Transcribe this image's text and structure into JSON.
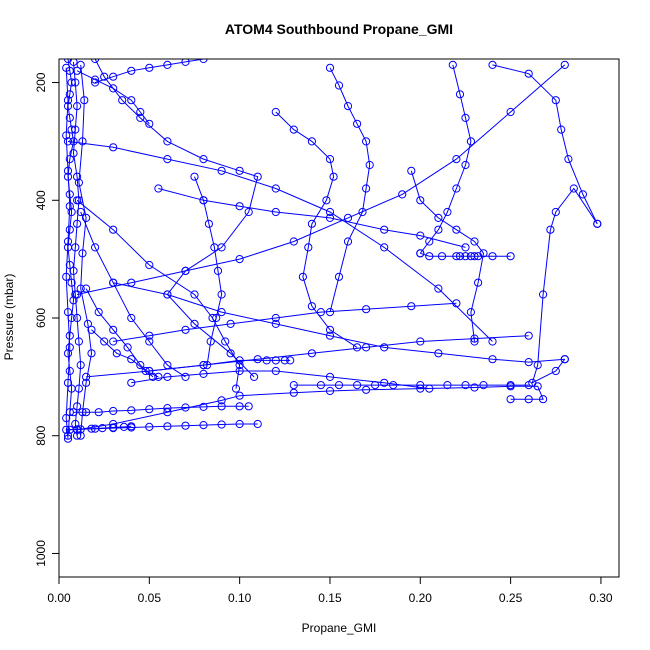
{
  "chart_data": {
    "type": "line",
    "title": "ATOM4 Southbound Propane_GMI",
    "xlabel": "Propane_GMI",
    "ylabel": "Pressure (mbar)",
    "xlim": [
      0.0,
      0.31
    ],
    "ylim": [
      1040,
      160
    ],
    "y_reversed": true,
    "xticks": [
      0.0,
      0.05,
      0.1,
      0.15,
      0.2,
      0.25,
      0.3
    ],
    "xtick_labels": [
      "0.00",
      "0.05",
      "0.10",
      "0.15",
      "0.20",
      "0.25",
      "0.30"
    ],
    "yticks": [
      200,
      400,
      600,
      800,
      1000
    ],
    "ytick_labels": [
      "200",
      "400",
      "600",
      "800",
      "1000"
    ],
    "grid": false,
    "color": "#0000ff",
    "markers": "open-circle",
    "series": [
      {
        "x": [
          0.005,
          0.006,
          0.007,
          0.006,
          0.005,
          0.006,
          0.007,
          0.008,
          0.006,
          0.005,
          0.006,
          0.007,
          0.006,
          0.005,
          0.006,
          0.007,
          0.008,
          0.007,
          0.006,
          0.005,
          0.006,
          0.007,
          0.006,
          0.005
        ],
        "y": [
          160,
          180,
          200,
          220,
          240,
          260,
          280,
          300,
          330,
          360,
          390,
          420,
          450,
          480,
          510,
          540,
          570,
          600,
          630,
          660,
          690,
          720,
          760,
          800
        ]
      },
      {
        "x": [
          0.008,
          0.009,
          0.01,
          0.009,
          0.008,
          0.01,
          0.011,
          0.01,
          0.009,
          0.008,
          0.009,
          0.01,
          0.011,
          0.012,
          0.011,
          0.01,
          0.009,
          0.01
        ],
        "y": [
          165,
          200,
          240,
          280,
          320,
          360,
          400,
          440,
          480,
          520,
          560,
          600,
          640,
          680,
          720,
          750,
          780,
          800
        ]
      },
      {
        "x": [
          0.004,
          0.005,
          0.004,
          0.005,
          0.006,
          0.005,
          0.004,
          0.005,
          0.006,
          0.005,
          0.004,
          0.005
        ],
        "y": [
          175,
          230,
          290,
          350,
          410,
          470,
          530,
          590,
          650,
          710,
          770,
          805
        ]
      },
      {
        "x": [
          0.012,
          0.014,
          0.013,
          0.011,
          0.015,
          0.013,
          0.012,
          0.016,
          0.018,
          0.015,
          0.013,
          0.012
        ],
        "y": [
          170,
          230,
          300,
          370,
          430,
          490,
          550,
          610,
          660,
          710,
          760,
          800
        ]
      },
      {
        "x": [
          0.02,
          0.025,
          0.035,
          0.045,
          0.06,
          0.08,
          0.1,
          0.11,
          0.105,
          0.09,
          0.07,
          0.06,
          0.075,
          0.095,
          0.108
        ],
        "y": [
          160,
          190,
          230,
          260,
          300,
          330,
          350,
          360,
          420,
          480,
          520,
          560,
          610,
          660,
          700
        ]
      },
      {
        "x": [
          0.01,
          0.03,
          0.05,
          0.075,
          0.085,
          0.092,
          0.1,
          0.098
        ],
        "y": [
          400,
          450,
          510,
          560,
          600,
          640,
          680,
          720
        ]
      },
      {
        "x": [
          0.004,
          0.01,
          0.02,
          0.03,
          0.04,
          0.05,
          0.06,
          0.07,
          0.08,
          0.09,
          0.1,
          0.11
        ],
        "y": [
          790,
          789,
          788,
          787,
          786,
          785,
          784,
          783,
          782,
          781,
          780,
          780
        ]
      },
      {
        "x": [
          0.006,
          0.012,
          0.018,
          0.024,
          0.03,
          0.036,
          0.04
        ],
        "y": [
          790,
          789,
          788,
          787,
          786,
          785,
          784
        ]
      },
      {
        "x": [
          0.008,
          0.015,
          0.022,
          0.03,
          0.04,
          0.05,
          0.06,
          0.07,
          0.08,
          0.09,
          0.1,
          0.105
        ],
        "y": [
          760,
          760,
          760,
          758,
          757,
          755,
          753,
          752,
          751,
          750,
          750,
          750
        ]
      },
      {
        "x": [
          0.01,
          0.03,
          0.06,
          0.09,
          0.1,
          0.13,
          0.15,
          0.17,
          0.2,
          0.23,
          0.25,
          0.265,
          0.268,
          0.26,
          0.25
        ],
        "y": [
          790,
          780,
          760,
          740,
          732,
          727,
          724,
          722,
          720,
          718,
          716,
          716,
          738,
          738,
          738
        ]
      },
      {
        "x": [
          0.13,
          0.145,
          0.155,
          0.165,
          0.175,
          0.185,
          0.2,
          0.215,
          0.225,
          0.235,
          0.25,
          0.26
        ],
        "y": [
          714,
          714,
          714,
          714,
          714,
          714,
          714,
          714,
          714,
          714,
          714,
          714
        ]
      },
      {
        "x": [
          0.015,
          0.05,
          0.08,
          0.1,
          0.115,
          0.12,
          0.125,
          0.128
        ],
        "y": [
          700,
          690,
          680,
          672,
          672,
          672,
          672,
          672
        ]
      },
      {
        "x": [
          0.03,
          0.06,
          0.09,
          0.12,
          0.15,
          0.18,
          0.21,
          0.24,
          0.26,
          0.28
        ],
        "y": [
          540,
          560,
          590,
          610,
          630,
          650,
          660,
          670,
          675,
          670
        ]
      },
      {
        "x": [
          0.28,
          0.275,
          0.262,
          0.265,
          0.268,
          0.272,
          0.275,
          0.285,
          0.298
        ],
        "y": [
          670,
          690,
          710,
          680,
          560,
          450,
          420,
          380,
          440
        ]
      },
      {
        "x": [
          0.24,
          0.26,
          0.275,
          0.278,
          0.282,
          0.29,
          0.298
        ],
        "y": [
          170,
          185,
          230,
          280,
          330,
          390,
          440
        ]
      },
      {
        "x": [
          0.195,
          0.2,
          0.21,
          0.22,
          0.23,
          0.235,
          0.232,
          0.228,
          0.23
        ],
        "y": [
          350,
          400,
          430,
          450,
          470,
          490,
          540,
          590,
          640
        ]
      },
      {
        "x": [
          0.2,
          0.205,
          0.212,
          0.22,
          0.222,
          0.225,
          0.228,
          0.23,
          0.232,
          0.24,
          0.25
        ],
        "y": [
          490,
          495,
          495,
          495,
          495,
          495,
          495,
          495,
          495,
          495,
          495
        ]
      },
      {
        "x": [
          0.218,
          0.222,
          0.225,
          0.228,
          0.225,
          0.22,
          0.215,
          0.21,
          0.205,
          0.2
        ],
        "y": [
          170,
          220,
          260,
          300,
          340,
          380,
          420,
          450,
          470,
          490
        ]
      },
      {
        "x": [
          0.15,
          0.155,
          0.16,
          0.165,
          0.17,
          0.172,
          0.17,
          0.168,
          0.16,
          0.155,
          0.15
        ],
        "y": [
          175,
          205,
          240,
          270,
          300,
          340,
          380,
          420,
          470,
          530,
          590
        ]
      },
      {
        "x": [
          0.12,
          0.13,
          0.14,
          0.15,
          0.152,
          0.148,
          0.14,
          0.138,
          0.135,
          0.14,
          0.15,
          0.165
        ],
        "y": [
          250,
          280,
          300,
          330,
          360,
          400,
          440,
          480,
          530,
          580,
          620,
          650
        ]
      },
      {
        "x": [
          0.055,
          0.08,
          0.1,
          0.12,
          0.15,
          0.18,
          0.2,
          0.225
        ],
        "y": [
          380,
          400,
          410,
          420,
          430,
          450,
          460,
          480
        ]
      },
      {
        "x": [
          0.075,
          0.08,
          0.083,
          0.086,
          0.088,
          0.09,
          0.087,
          0.084,
          0.082
        ],
        "y": [
          360,
          400,
          440,
          480,
          520,
          560,
          600,
          640,
          680
        ]
      },
      {
        "x": [
          0.03,
          0.05,
          0.07,
          0.095,
          0.12,
          0.145,
          0.17,
          0.195,
          0.22
        ],
        "y": [
          640,
          630,
          620,
          610,
          600,
          590,
          585,
          580,
          575
        ]
      },
      {
        "x": [
          0.05,
          0.08,
          0.11,
          0.14,
          0.17,
          0.2,
          0.23,
          0.26
        ],
        "y": [
          690,
          680,
          670,
          660,
          650,
          640,
          635,
          630
        ]
      },
      {
        "x": [
          0.04,
          0.06,
          0.08,
          0.1,
          0.12,
          0.15,
          0.18,
          0.205
        ],
        "y": [
          710,
          700,
          695,
          690,
          690,
          700,
          710,
          720
        ]
      },
      {
        "x": [
          0.01,
          0.04,
          0.07,
          0.1,
          0.13,
          0.16,
          0.19,
          0.22,
          0.25,
          0.28
        ],
        "y": [
          560,
          540,
          520,
          500,
          470,
          430,
          390,
          330,
          250,
          170
        ]
      },
      {
        "x": [
          0.005,
          0.03,
          0.06,
          0.09,
          0.12,
          0.15,
          0.18,
          0.21,
          0.24
        ],
        "y": [
          300,
          310,
          330,
          350,
          380,
          420,
          480,
          550,
          640
        ]
      },
      {
        "x": [
          0.012,
          0.02,
          0.03,
          0.04,
          0.05,
          0.06,
          0.07
        ],
        "y": [
          420,
          480,
          540,
          600,
          640,
          680,
          700
        ]
      },
      {
        "x": [
          0.015,
          0.022,
          0.03,
          0.038,
          0.045,
          0.052
        ],
        "y": [
          550,
          590,
          620,
          650,
          680,
          700
        ]
      },
      {
        "x": [
          0.018,
          0.025,
          0.032,
          0.04,
          0.048,
          0.055
        ],
        "y": [
          620,
          640,
          660,
          670,
          690,
          700
        ]
      },
      {
        "x": [
          0.02,
          0.03,
          0.04,
          0.05,
          0.06,
          0.07,
          0.08
        ],
        "y": [
          200,
          190,
          180,
          175,
          170,
          165,
          160
        ]
      },
      {
        "x": [
          0.01,
          0.02,
          0.03,
          0.04,
          0.045,
          0.05
        ],
        "y": [
          180,
          195,
          210,
          230,
          250,
          270
        ]
      }
    ]
  }
}
